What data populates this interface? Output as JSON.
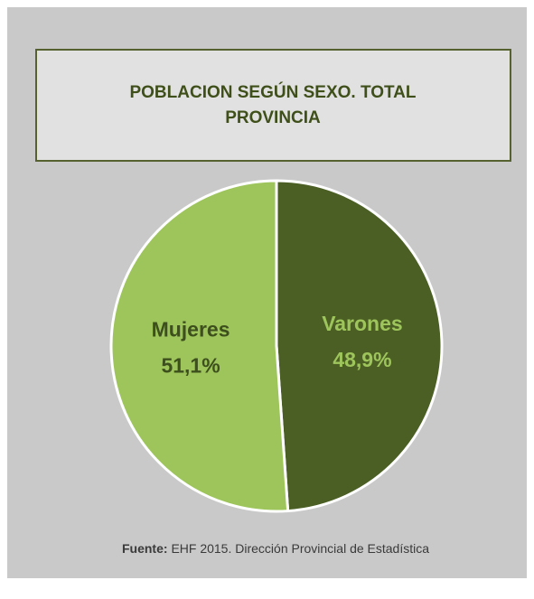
{
  "chart_data": {
    "type": "pie",
    "title": "POBLACION SEGÚN SEXO. TOTAL PROVINCIA",
    "categories": [
      "Varones",
      "Mujeres"
    ],
    "values": [
      48.9,
      51.1
    ],
    "value_labels": [
      "48,9%",
      "51,1%"
    ],
    "colors": [
      "#4b5f24",
      "#9ec55c"
    ],
    "source_label": "Fuente:",
    "source": "EHF 2015. Dirección Provincial de Estadística"
  }
}
